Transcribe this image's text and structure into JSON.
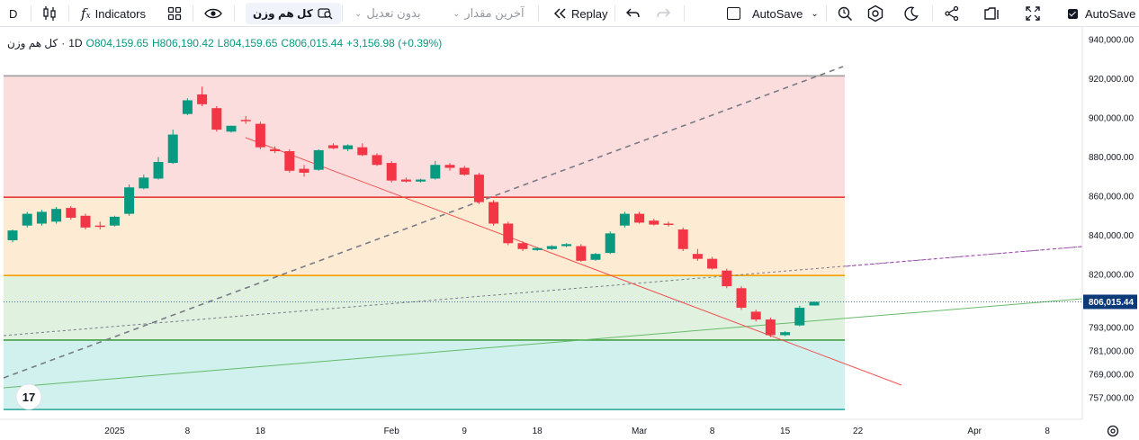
{
  "toolbar": {
    "symbol_short": "D",
    "indicators_label": "Indicators",
    "symbol_name": "کل هم وزن",
    "adjustment": "بدون تعدیل",
    "last_value": "آخرین مقدار",
    "replay": "Replay",
    "autosave": "AutoSave",
    "autosave_right": "AutoSave"
  },
  "legend": {
    "name": "کل هم وزن",
    "interval": "1D",
    "open": "O804,159.65",
    "high": "H806,190.42",
    "low": "L804,159.65",
    "close": "C806,015.44",
    "change": "+3,156.98 (+0.39%)"
  },
  "colors": {
    "up": "#089981",
    "down": "#f23645",
    "zone_red": "#fbd7d8",
    "zone_orange": "#fde7cc",
    "zone_green": "#dcefdb",
    "zone_teal": "#c9eeec",
    "price_label": "#0c3a78"
  },
  "chart_data": {
    "type": "candlestick",
    "title": "کل هم وزن",
    "interval": "1D",
    "ylim": [
      746000,
      946000
    ],
    "y_ticks": [
      757000,
      769000,
      781000,
      793000,
      820000,
      840000,
      860000,
      880000,
      900000,
      920000,
      940000
    ],
    "y_tick_labels": [
      "757,000.00",
      "769,000.00",
      "781,000.00",
      "793,000.00",
      "820,000.00",
      "840,000.00",
      "860,000.00",
      "880,000.00",
      "900,000.00",
      "920,000.00",
      "940,000.00"
    ],
    "x_tick_labels": [
      {
        "label": "2025",
        "i": 7
      },
      {
        "label": "8",
        "i": 12
      },
      {
        "label": "18",
        "i": 17
      },
      {
        "label": "Feb",
        "i": 26
      },
      {
        "label": "9",
        "i": 31
      },
      {
        "label": "18",
        "i": 36
      },
      {
        "label": "Mar",
        "i": 43
      },
      {
        "label": "8",
        "i": 48
      },
      {
        "label": "15",
        "i": 53
      },
      {
        "label": "22",
        "i": 58
      },
      {
        "label": "Apr",
        "i": 66
      },
      {
        "label": "8",
        "i": 71
      }
    ],
    "last_price_label": "806,015.44",
    "candles": [
      {
        "o": 837500,
        "h": 843000,
        "c": 842500,
        "l": 836500
      },
      {
        "o": 845000,
        "h": 852000,
        "c": 851000,
        "l": 844000
      },
      {
        "o": 846000,
        "h": 853000,
        "c": 852000,
        "l": 845000
      },
      {
        "o": 847000,
        "h": 854500,
        "c": 853500,
        "l": 846000
      },
      {
        "o": 854000,
        "h": 855000,
        "c": 849000,
        "l": 848000
      },
      {
        "o": 850000,
        "h": 851000,
        "c": 844000,
        "l": 843000
      },
      {
        "o": 845000,
        "h": 847000,
        "c": 844500,
        "l": 843000
      },
      {
        "o": 845000,
        "h": 850000,
        "c": 849500,
        "l": 844500
      },
      {
        "o": 851000,
        "h": 866000,
        "c": 864500,
        "l": 850000
      },
      {
        "o": 864000,
        "h": 871000,
        "c": 869500,
        "l": 863500
      },
      {
        "o": 869000,
        "h": 880000,
        "c": 877500,
        "l": 868500
      },
      {
        "o": 877000,
        "h": 894000,
        "c": 891500,
        "l": 876500
      },
      {
        "o": 902000,
        "h": 910000,
        "c": 909000,
        "l": 901500
      },
      {
        "o": 912000,
        "h": 916000,
        "c": 907000,
        "l": 906000
      },
      {
        "o": 905000,
        "h": 906000,
        "c": 894000,
        "l": 893000
      },
      {
        "o": 893000,
        "h": 896000,
        "c": 896000,
        "l": 892500
      },
      {
        "o": 899000,
        "h": 901000,
        "c": 898500,
        "l": 897000
      },
      {
        "o": 897000,
        "h": 898000,
        "c": 885000,
        "l": 884000
      },
      {
        "o": 884000,
        "h": 885500,
        "c": 883000,
        "l": 882000
      },
      {
        "o": 883000,
        "h": 884000,
        "c": 873000,
        "l": 872000
      },
      {
        "o": 874000,
        "h": 876000,
        "c": 872000,
        "l": 870000
      },
      {
        "o": 873500,
        "h": 884000,
        "c": 883500,
        "l": 873000
      },
      {
        "o": 886000,
        "h": 887000,
        "c": 884500,
        "l": 884000
      },
      {
        "o": 884000,
        "h": 886500,
        "c": 886000,
        "l": 883000
      },
      {
        "o": 885000,
        "h": 887000,
        "c": 881000,
        "l": 880500
      },
      {
        "o": 881000,
        "h": 882000,
        "c": 876000,
        "l": 875500
      },
      {
        "o": 877000,
        "h": 878000,
        "c": 868000,
        "l": 867000
      },
      {
        "o": 868500,
        "h": 869500,
        "c": 867500,
        "l": 867000
      },
      {
        "o": 867500,
        "h": 869000,
        "c": 868500,
        "l": 867000
      },
      {
        "o": 869000,
        "h": 878000,
        "c": 876000,
        "l": 868500
      },
      {
        "o": 876000,
        "h": 877000,
        "c": 874500,
        "l": 873000
      },
      {
        "o": 874500,
        "h": 875500,
        "c": 871000,
        "l": 870500
      },
      {
        "o": 871000,
        "h": 872000,
        "c": 857000,
        "l": 856000
      },
      {
        "o": 857000,
        "h": 858000,
        "c": 846000,
        "l": 845000
      },
      {
        "o": 846000,
        "h": 847000,
        "c": 836000,
        "l": 835000
      },
      {
        "o": 836000,
        "h": 837000,
        "c": 833000,
        "l": 832000
      },
      {
        "o": 832500,
        "h": 834000,
        "c": 833500,
        "l": 832000
      },
      {
        "o": 833000,
        "h": 835000,
        "c": 834500,
        "l": 832500
      },
      {
        "o": 834500,
        "h": 836000,
        "c": 835500,
        "l": 834000
      },
      {
        "o": 834500,
        "h": 835500,
        "c": 827000,
        "l": 826500
      },
      {
        "o": 827500,
        "h": 831000,
        "c": 830500,
        "l": 827000
      },
      {
        "o": 831000,
        "h": 842000,
        "c": 841000,
        "l": 830500
      },
      {
        "o": 845000,
        "h": 852000,
        "c": 851000,
        "l": 844000
      },
      {
        "o": 851000,
        "h": 852000,
        "c": 846500,
        "l": 846000
      },
      {
        "o": 847500,
        "h": 848500,
        "c": 845500,
        "l": 845000
      },
      {
        "o": 846000,
        "h": 847000,
        "c": 845500,
        "l": 844500
      },
      {
        "o": 843000,
        "h": 844000,
        "c": 833000,
        "l": 832000
      },
      {
        "o": 830500,
        "h": 833000,
        "c": 828000,
        "l": 827000
      },
      {
        "o": 828000,
        "h": 829000,
        "c": 823000,
        "l": 822500
      },
      {
        "o": 822000,
        "h": 823000,
        "c": 814000,
        "l": 813000
      },
      {
        "o": 813000,
        "h": 814000,
        "c": 803000,
        "l": 802000
      },
      {
        "o": 801000,
        "h": 802000,
        "c": 797000,
        "l": 796000
      },
      {
        "o": 797000,
        "h": 798000,
        "c": 789000,
        "l": 788000
      },
      {
        "o": 789000,
        "h": 791000,
        "c": 790500,
        "l": 788500
      },
      {
        "o": 794000,
        "h": 804000,
        "c": 803000,
        "l": 793500
      },
      {
        "o": 804160,
        "h": 806190,
        "c": 806015,
        "l": 804160
      }
    ],
    "zones": [
      {
        "name": "red",
        "from": 859500,
        "to": 921500
      },
      {
        "name": "orange",
        "from": 819500,
        "to": 859500
      },
      {
        "name": "green",
        "from": 786500,
        "to": 819500
      },
      {
        "name": "teal",
        "from": 751000,
        "to": 786500
      }
    ],
    "horizontal_lines": [
      921500,
      859500,
      819500,
      786500,
      751000
    ],
    "current_price": 806015.44
  }
}
